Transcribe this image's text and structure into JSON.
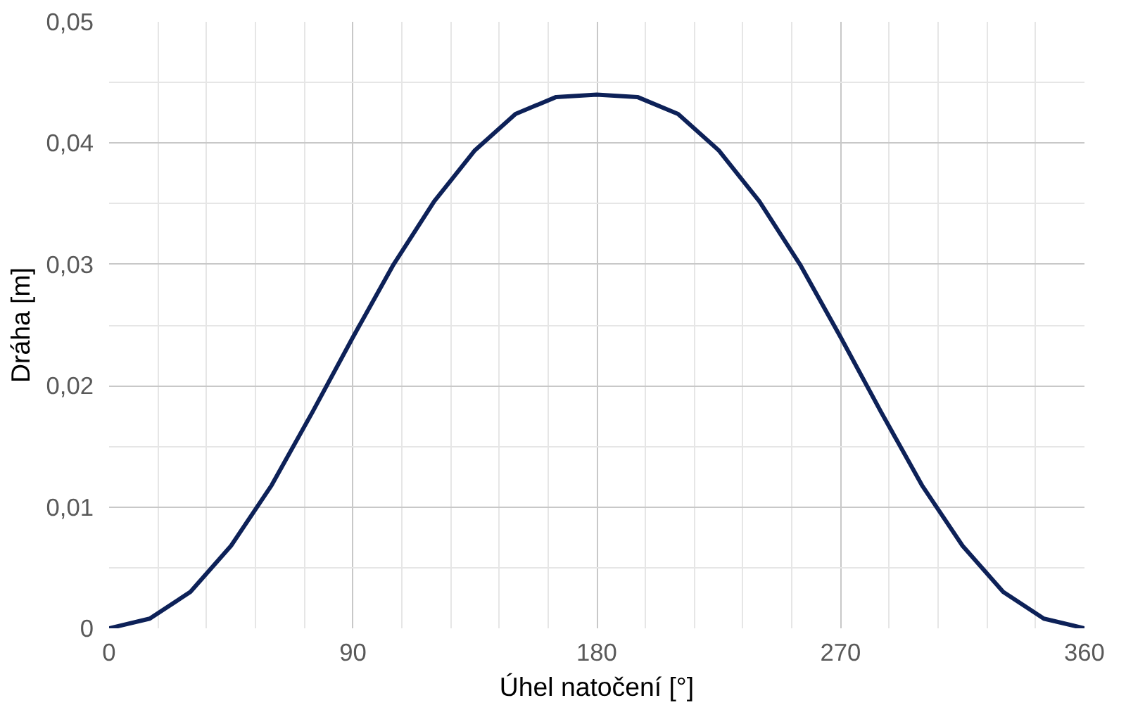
{
  "chart_data": {
    "type": "line",
    "xlabel": "Úhel natočení [°]",
    "ylabel": "Dráha [m]",
    "x": [
      0,
      15,
      30,
      45,
      60,
      75,
      90,
      105,
      120,
      135,
      150,
      165,
      180,
      195,
      210,
      225,
      240,
      255,
      270,
      285,
      300,
      315,
      330,
      345,
      360
    ],
    "series": [
      {
        "color": "#0d2158",
        "values": [
          0,
          0.0008,
          0.003,
          0.0068,
          0.0118,
          0.0178,
          0.024,
          0.03,
          0.0352,
          0.0394,
          0.0424,
          0.0438,
          0.044,
          0.0438,
          0.0424,
          0.0394,
          0.0352,
          0.03,
          0.024,
          0.0178,
          0.0118,
          0.0068,
          0.003,
          0.0008,
          0
        ]
      }
    ],
    "xlim": [
      0,
      360
    ],
    "xticks": [
      0,
      90,
      180,
      270,
      360
    ],
    "ylim": [
      0,
      0.05
    ],
    "yticks": [
      0,
      {
        "value": 0.01,
        "label": "0,01"
      },
      {
        "value": 0.02,
        "label": "0,02"
      },
      {
        "value": 0.03,
        "label": "0,03"
      },
      {
        "value": 0.04,
        "label": "0,04"
      },
      {
        "value": 0.05,
        "label": "0,05"
      }
    ],
    "grid": true,
    "marker": "none",
    "line_style": "solid"
  }
}
